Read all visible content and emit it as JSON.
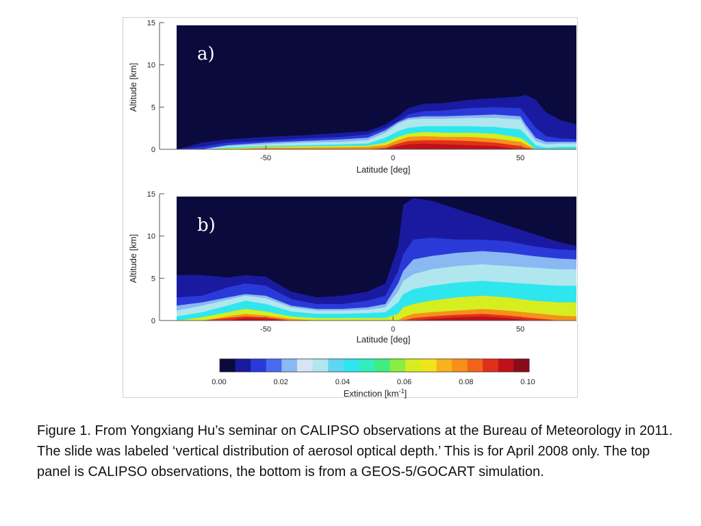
{
  "colors": {
    "background": "#0a0a3c",
    "scale": [
      "#0a0a3c",
      "#1a1aa0",
      "#2a3ad8",
      "#4a6aee",
      "#8ab8f2",
      "#d6e4f4",
      "#b0e6ee",
      "#5fd6f0",
      "#30e6ee",
      "#30eebe",
      "#40ee80",
      "#8aee40",
      "#d6ee20",
      "#f2e41a",
      "#f6b41a",
      "#f6901a",
      "#f2641a",
      "#e0301a",
      "#c0101a",
      "#8a0a1a"
    ]
  },
  "chart_data": [
    {
      "type": "heatmap",
      "panel_label": "a)",
      "title": "",
      "xlabel": "Latitude [deg]",
      "ylabel": "Altitude [km]",
      "xlim": [
        -85,
        72
      ],
      "ylim": [
        0,
        15
      ],
      "x_ticks": [
        -50,
        0,
        50
      ],
      "y_ticks": [
        0,
        5,
        10,
        15
      ],
      "profile_latitudes": [
        -85,
        -75,
        -65,
        -50,
        -35,
        -20,
        -10,
        -3,
        2,
        6,
        12,
        20,
        30,
        40,
        50,
        52,
        56,
        60,
        66,
        72
      ],
      "contour_tops_km": [
        [
          0.0,
          0.8,
          1.2,
          1.5,
          1.7,
          2.0,
          2.2,
          3.0,
          4.0,
          5.0,
          5.5,
          5.6,
          6.0,
          6.2,
          6.4,
          6.6,
          6.0,
          4.5,
          3.5,
          3.0
        ],
        [
          0.0,
          0.3,
          0.8,
          1.0,
          1.3,
          1.5,
          1.8,
          2.6,
          3.4,
          4.2,
          4.6,
          4.7,
          5.0,
          5.1,
          5.0,
          4.2,
          2.6,
          1.6,
          1.3,
          1.2
        ],
        [
          0.0,
          0.0,
          0.5,
          0.8,
          1.0,
          1.2,
          1.4,
          2.3,
          3.3,
          3.8,
          4.0,
          4.0,
          4.1,
          4.2,
          4.0,
          3.0,
          1.4,
          0.9,
          0.9,
          0.9
        ],
        [
          0.0,
          0.0,
          0.4,
          0.6,
          0.8,
          0.9,
          1.1,
          2.0,
          3.1,
          3.6,
          3.7,
          3.7,
          3.8,
          3.8,
          3.6,
          2.6,
          1.0,
          0.6,
          0.7,
          0.7
        ],
        [
          0.0,
          0.0,
          0.25,
          0.4,
          0.5,
          0.6,
          0.7,
          1.4,
          2.2,
          2.6,
          2.8,
          2.8,
          2.8,
          2.7,
          2.4,
          1.8,
          0.5,
          0.2,
          0.3,
          0.3
        ],
        [
          0.0,
          0.0,
          0.15,
          0.3,
          0.35,
          0.4,
          0.45,
          0.8,
          1.5,
          1.9,
          2.1,
          2.0,
          2.0,
          1.9,
          1.4,
          1.0,
          0.0,
          0.0,
          0.0,
          0.0
        ],
        [
          0.0,
          0.0,
          0.0,
          0.2,
          0.2,
          0.25,
          0.3,
          0.5,
          1.1,
          1.5,
          1.6,
          1.5,
          1.5,
          1.3,
          0.9,
          0.6,
          0.0,
          0.0,
          0.0,
          0.0
        ],
        [
          0.0,
          0.0,
          0.0,
          0.0,
          0.0,
          0.0,
          0.0,
          0.2,
          0.7,
          1.0,
          1.1,
          1.1,
          1.0,
          0.8,
          0.4,
          0.2,
          0.0,
          0.0,
          0.0,
          0.0
        ],
        [
          0.0,
          0.0,
          0.0,
          0.0,
          0.0,
          0.0,
          0.0,
          0.0,
          0.4,
          0.6,
          0.7,
          0.6,
          0.5,
          0.4,
          0.0,
          0.0,
          0.0,
          0.0,
          0.0,
          0.0
        ]
      ],
      "contour_levels": [
        0.005,
        0.01,
        0.015,
        0.02,
        0.04,
        0.06,
        0.07,
        0.08,
        0.09
      ]
    },
    {
      "type": "heatmap",
      "panel_label": "b)",
      "title": "",
      "xlabel": "Latitude [deg]",
      "ylabel": "Altitude [km]",
      "xlim": [
        -85,
        72
      ],
      "ylim": [
        0,
        15
      ],
      "x_ticks": [
        -50,
        0,
        50
      ],
      "y_ticks": [
        0,
        5,
        10,
        15
      ],
      "profile_latitudes": [
        -85,
        -75,
        -65,
        -58,
        -50,
        -40,
        -30,
        -20,
        -10,
        -3,
        2,
        4,
        8,
        15,
        25,
        35,
        45,
        55,
        65,
        72
      ],
      "contour_tops_km": [
        [
          5.5,
          5.5,
          5.2,
          5.5,
          5.3,
          3.5,
          2.8,
          3.0,
          3.5,
          4.5,
          9.0,
          14.0,
          14.8,
          14.5,
          13.5,
          12.5,
          11.5,
          10.5,
          9.5,
          9.0
        ],
        [
          2.8,
          3.0,
          4.0,
          4.5,
          4.2,
          2.6,
          2.0,
          2.0,
          2.4,
          3.0,
          6.0,
          8.0,
          9.8,
          10.0,
          9.8,
          9.8,
          9.6,
          9.0,
          8.6,
          8.5
        ],
        [
          1.8,
          2.2,
          2.8,
          3.2,
          3.0,
          1.8,
          1.4,
          1.4,
          1.6,
          2.0,
          4.5,
          6.0,
          7.4,
          7.8,
          8.2,
          8.4,
          8.2,
          7.8,
          7.5,
          7.4
        ],
        [
          1.2,
          1.8,
          2.5,
          3.0,
          2.7,
          1.6,
          1.2,
          1.2,
          1.3,
          1.6,
          3.5,
          4.8,
          5.6,
          6.2,
          6.6,
          6.8,
          6.6,
          6.4,
          6.2,
          6.2
        ],
        [
          0.5,
          1.0,
          1.8,
          2.4,
          2.0,
          1.1,
          0.8,
          0.8,
          0.9,
          1.0,
          2.2,
          3.2,
          3.8,
          4.2,
          4.6,
          4.8,
          4.6,
          4.4,
          4.2,
          4.2
        ],
        [
          0.0,
          0.4,
          1.0,
          1.4,
          1.1,
          0.5,
          0.3,
          0.3,
          0.3,
          0.3,
          0.8,
          1.6,
          2.0,
          2.4,
          2.8,
          3.0,
          2.8,
          2.4,
          2.2,
          2.2
        ],
        [
          0.0,
          0.0,
          0.5,
          0.8,
          0.6,
          0.2,
          0.0,
          0.0,
          0.0,
          0.0,
          0.0,
          0.4,
          0.8,
          1.0,
          1.2,
          1.4,
          1.2,
          0.9,
          0.6,
          0.5
        ],
        [
          0.0,
          0.0,
          0.3,
          0.5,
          0.4,
          0.0,
          0.0,
          0.0,
          0.0,
          0.0,
          0.0,
          0.0,
          0.3,
          0.5,
          0.7,
          0.8,
          0.6,
          0.3,
          0.0,
          0.0
        ],
        [
          0.0,
          0.0,
          0.0,
          0.3,
          0.2,
          0.0,
          0.0,
          0.0,
          0.0,
          0.0,
          0.0,
          0.0,
          0.0,
          0.2,
          0.4,
          0.5,
          0.3,
          0.0,
          0.0,
          0.0
        ]
      ],
      "contour_levels": [
        0.005,
        0.01,
        0.015,
        0.02,
        0.04,
        0.06,
        0.07,
        0.08,
        0.09
      ]
    }
  ],
  "colorbar": {
    "label": "Extinction [km",
    "label_sup": "-1",
    "label_end": "]",
    "range": [
      0.0,
      0.1
    ],
    "tick_labels": [
      "0.00",
      "0.02",
      "0.04",
      "0.06",
      "0.08",
      "0.10"
    ]
  },
  "caption": "Figure 1.  From Yongxiang Hu’s seminar on CALIPSO observations at the Bureau of Meteorology in 2011. The slide was labeled ‘vertical distribution of aerosol optical depth.’ This is for April 2008 only. The top panel is CALIPSO observations, the bottom is from a GEOS-5/GOCART simulation."
}
